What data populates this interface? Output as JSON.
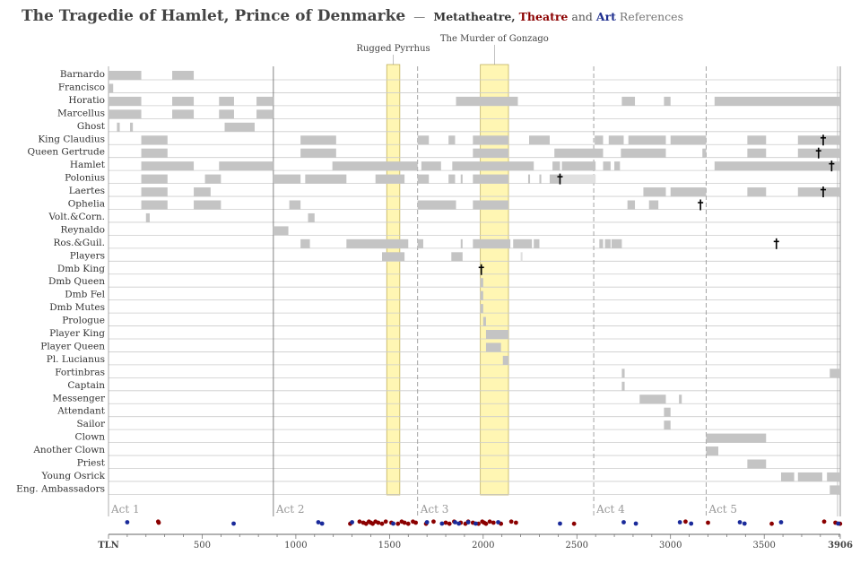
{
  "title": {
    "main": "The Tragedie of Hamlet, Prince of Denmarke",
    "dash": "—",
    "meta": "Metatheatre,",
    "theatre": "Theatre",
    "and": "and",
    "art": "Art",
    "refs": "References"
  },
  "colors": {
    "bar": "#c4c4c4",
    "bar_light": "#e0e0e0",
    "highlight_fill": "#fff6b3",
    "highlight_stroke": "#b8a850",
    "theatre": "#8b0000",
    "art": "#1a2a9a",
    "grid": "#cccccc",
    "act_line": "#999999"
  },
  "chart_data": {
    "type": "timeline",
    "x_axis": {
      "label": "TLN",
      "max_label": "3906",
      "ticks": [
        500,
        1000,
        1500,
        2000,
        2500,
        3000,
        3500
      ],
      "range": [
        0,
        3906
      ]
    },
    "acts": [
      {
        "label": "Act 1",
        "start": 0
      },
      {
        "label": "Act 2",
        "start": 880
      },
      {
        "label": "Act 3",
        "start": 1650
      },
      {
        "label": "Act 4",
        "start": 2590
      },
      {
        "label": "Act 5",
        "start": 3190
      }
    ],
    "highlights": [
      {
        "label": "Rugged Pyrrhus",
        "start": 1485,
        "end": 1555
      },
      {
        "label": "The Murder of Gonzago",
        "start": 1985,
        "end": 2135
      }
    ],
    "characters": [
      {
        "name": "Barnardo",
        "spans": [
          [
            0,
            175
          ],
          [
            340,
            455
          ]
        ]
      },
      {
        "name": "Francisco",
        "spans": [
          [
            0,
            25
          ]
        ]
      },
      {
        "name": "Horatio",
        "spans": [
          [
            0,
            175
          ],
          [
            340,
            455
          ],
          [
            590,
            670
          ],
          [
            790,
            880
          ],
          [
            1855,
            2185
          ],
          [
            2740,
            2810
          ],
          [
            2965,
            3000
          ],
          [
            3235,
            3906
          ]
        ]
      },
      {
        "name": "Marcellus",
        "spans": [
          [
            0,
            175
          ],
          [
            340,
            455
          ],
          [
            590,
            670
          ],
          [
            790,
            880
          ]
        ]
      },
      {
        "name": "Ghost",
        "spans": [
          [
            45,
            60
          ],
          [
            115,
            130
          ],
          [
            620,
            780
          ]
        ]
      },
      {
        "name": "King Claudius",
        "spans": [
          [
            175,
            315
          ],
          [
            1025,
            1215
          ],
          [
            1650,
            1710
          ],
          [
            1815,
            1850
          ],
          [
            1945,
            2135
          ],
          [
            2245,
            2355
          ],
          [
            2595,
            2640
          ],
          [
            2670,
            2750
          ],
          [
            2775,
            2975
          ],
          [
            3000,
            3190
          ],
          [
            3410,
            3510
          ],
          [
            3680,
            3906
          ]
        ]
      },
      {
        "name": "Queen Gertrude",
        "spans": [
          [
            175,
            315
          ],
          [
            1025,
            1215
          ],
          [
            1945,
            2135
          ],
          [
            2380,
            2600
          ],
          [
            2595,
            2640
          ],
          [
            2735,
            2975
          ],
          [
            3170,
            3190
          ],
          [
            3410,
            3510
          ],
          [
            3680,
            3906
          ]
        ]
      },
      {
        "name": "Hamlet",
        "spans": [
          [
            175,
            455
          ],
          [
            590,
            880
          ],
          [
            1195,
            1650
          ],
          [
            1670,
            1775
          ],
          [
            1835,
            2270
          ],
          [
            2370,
            2410
          ],
          [
            2420,
            2600
          ],
          [
            2640,
            2680
          ],
          [
            2700,
            2730
          ],
          [
            3235,
            3906
          ]
        ]
      },
      {
        "name": "Polonius",
        "spans": [
          [
            175,
            315
          ],
          [
            515,
            600
          ],
          [
            880,
            1025
          ],
          [
            1050,
            1270
          ],
          [
            1425,
            1580
          ],
          [
            1650,
            1710
          ],
          [
            1815,
            1850
          ],
          [
            1880,
            1890
          ],
          [
            1945,
            2135
          ],
          [
            2240,
            2250
          ],
          [
            2300,
            2310
          ],
          [
            2355,
            2410
          ]
        ],
        "light_spans": [
          [
            2410,
            2600
          ]
        ]
      },
      {
        "name": "Laertes",
        "spans": [
          [
            175,
            315
          ],
          [
            455,
            545
          ],
          [
            2855,
            2975
          ],
          [
            3000,
            3190
          ],
          [
            3410,
            3510
          ],
          [
            3680,
            3906
          ]
        ]
      },
      {
        "name": "Ophelia",
        "spans": [
          [
            175,
            315
          ],
          [
            455,
            600
          ],
          [
            965,
            1025
          ],
          [
            1650,
            1855
          ],
          [
            1945,
            2135
          ],
          [
            2770,
            2810
          ],
          [
            2885,
            2935
          ]
        ]
      },
      {
        "name": "Volt.&Corn.",
        "spans": [
          [
            200,
            220
          ],
          [
            1065,
            1100
          ]
        ]
      },
      {
        "name": "Reynaldo",
        "spans": [
          [
            880,
            960
          ]
        ]
      },
      {
        "name": "Ros.&Guil.",
        "spans": [
          [
            1025,
            1075
          ],
          [
            1270,
            1600
          ],
          [
            1650,
            1680
          ],
          [
            1880,
            1890
          ],
          [
            1945,
            2145
          ],
          [
            2160,
            2260
          ],
          [
            2270,
            2300
          ],
          [
            2620,
            2640
          ],
          [
            2650,
            2680
          ],
          [
            2685,
            2740
          ]
        ]
      },
      {
        "name": "Players",
        "spans": [
          [
            1460,
            1580
          ],
          [
            1830,
            1890
          ]
        ],
        "light_spans": [
          [
            2200,
            2210
          ]
        ]
      },
      {
        "name": "Dmb King",
        "spans": []
      },
      {
        "name": "Dmb Queen",
        "spans": [
          [
            1985,
            2000
          ]
        ]
      },
      {
        "name": "Dmb Fel",
        "spans": [
          [
            1985,
            2000
          ]
        ]
      },
      {
        "name": "Dmb Mutes",
        "spans": [
          [
            1985,
            2000
          ]
        ]
      },
      {
        "name": "Prologue",
        "spans": [
          [
            2000,
            2015
          ]
        ]
      },
      {
        "name": "Player King",
        "spans": [
          [
            2015,
            2135
          ]
        ]
      },
      {
        "name": "Player Queen",
        "spans": [
          [
            2015,
            2095
          ]
        ]
      },
      {
        "name": "Pl. Lucianus",
        "spans": [
          [
            2105,
            2135
          ]
        ]
      },
      {
        "name": "Fortinbras",
        "spans": [
          [
            2740,
            2755
          ],
          [
            3850,
            3906
          ]
        ]
      },
      {
        "name": "Captain",
        "spans": [
          [
            2740,
            2755
          ]
        ]
      },
      {
        "name": "Messenger",
        "spans": [
          [
            2835,
            2975
          ],
          [
            3045,
            3060
          ]
        ]
      },
      {
        "name": "Attendant",
        "spans": [
          [
            2965,
            3000
          ]
        ]
      },
      {
        "name": "Sailor",
        "spans": [
          [
            2965,
            3000
          ]
        ]
      },
      {
        "name": "Clown",
        "spans": [
          [
            3190,
            3510
          ]
        ]
      },
      {
        "name": "Another Clown",
        "spans": [
          [
            3190,
            3255
          ]
        ]
      },
      {
        "name": "Priest",
        "spans": [
          [
            3410,
            3510
          ]
        ]
      },
      {
        "name": "Young Osrick",
        "spans": [
          [
            3590,
            3660
          ],
          [
            3680,
            3810
          ],
          [
            3835,
            3906
          ]
        ]
      },
      {
        "name": "Eng. Ambassadors",
        "spans": [
          [
            3850,
            3906
          ]
        ]
      }
    ],
    "deaths": [
      {
        "character": "King Claudius",
        "tln": 3815
      },
      {
        "character": "Queen Gertrude",
        "tln": 3790
      },
      {
        "character": "Hamlet",
        "tln": 3860
      },
      {
        "character": "Polonius",
        "tln": 2410
      },
      {
        "character": "Laertes",
        "tln": 3815
      },
      {
        "character": "Ophelia",
        "tln": 3160
      },
      {
        "character": "Ros.&Guil.",
        "tln": 3565
      },
      {
        "character": "Dmb King",
        "tln": 1990
      }
    ],
    "references": {
      "theatre": [
        265,
        268,
        1290,
        1340,
        1360,
        1375,
        1390,
        1400,
        1410,
        1425,
        1440,
        1460,
        1480,
        1510,
        1545,
        1565,
        1580,
        1600,
        1625,
        1640,
        1695,
        1735,
        1800,
        1820,
        1845,
        1880,
        1905,
        1920,
        1945,
        1975,
        1995,
        2005,
        2015,
        2035,
        2055,
        2095,
        2150,
        2175,
        2485,
        3080,
        3200,
        3540,
        3820,
        3880,
        3905
      ],
      "art": [
        100,
        668,
        1120,
        1140,
        1300,
        1520,
        1700,
        1780,
        1850,
        1870,
        1920,
        1960,
        2080,
        2410,
        2750,
        2815,
        3050,
        3110,
        3370,
        3395,
        3590,
        3895
      ]
    }
  }
}
